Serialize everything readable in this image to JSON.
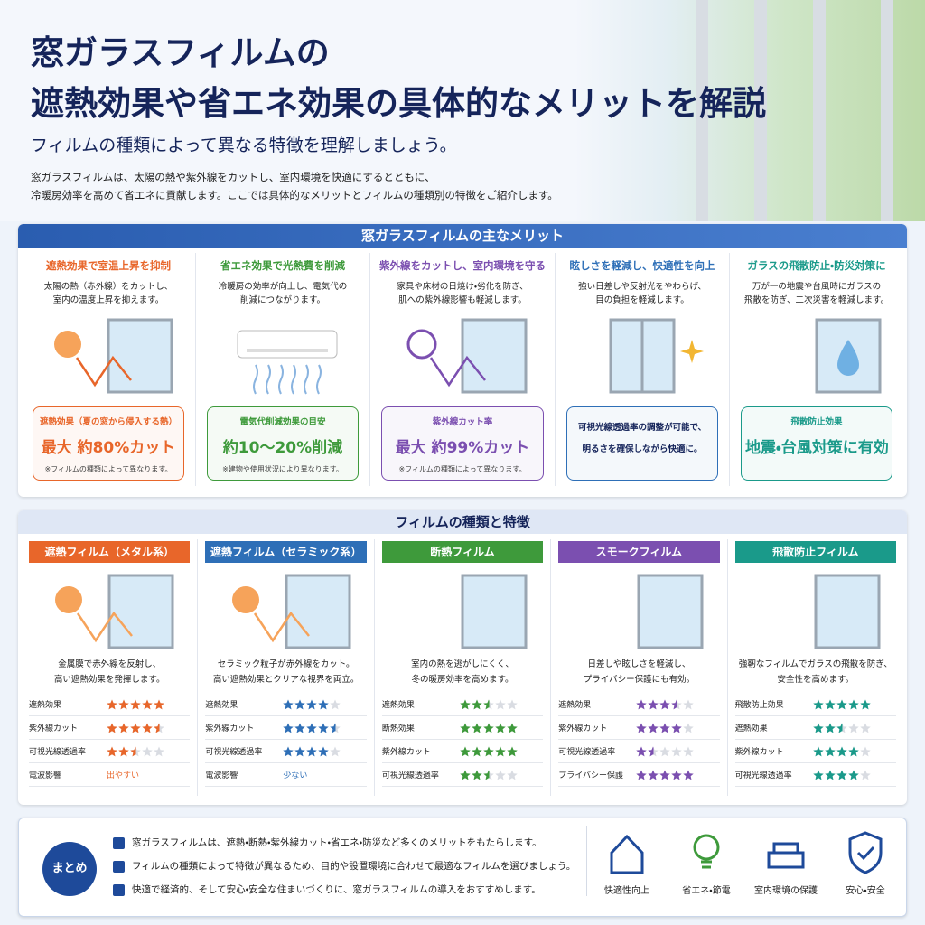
{
  "header": {
    "title_lines": [
      "窓ガラスフィルムの",
      "遮熱効果や省エネ効果の具体的なメリットを解説"
    ],
    "subtitle": "フィルムの種類によって異なる特徴を理解しましょう。",
    "intro": [
      "窓ガラスフィルムは、太陽の熱や紫外線をカットし、室内環境を快適にするとともに、",
      "冷暖房効率を高めて省エネに貢献します。ここでは具体的なメリットとフィルムの種類別の特徴をご紹介します。"
    ]
  },
  "merits": {
    "title": "窓ガラスフィルムの主なメリット",
    "cards": [
      {
        "heading": "遮熱効果で室温上昇を抑制",
        "description": [
          "太陽の熱（赤外線）をカットし、",
          "室内の温度上昇を抑えます。"
        ],
        "box": {
          "label": "遮熱効果（夏の窓から侵入する熱）",
          "value": "最大 約80%カット",
          "note": "※フィルムの種類によって異なります。"
        }
      },
      {
        "heading": "省エネ効果で光熱費を削減",
        "description": [
          "冷暖房の効率が向上し、電気代の",
          "削減につながります。"
        ],
        "box": {
          "label": "電気代削減効果の目安",
          "value": "約10〜20%削減",
          "note": "※建物や使用状況により異なります。"
        }
      },
      {
        "heading": "紫外線をカットし、室内環境を守る",
        "description": [
          "家具や床材の日焼け・劣化を防ぎ、",
          "肌への紫外線影響も軽減します。"
        ],
        "box": {
          "label": "紫外線カット率",
          "value": "最大 約99%カット",
          "note": "※フィルムの種類によって異なります。"
        }
      },
      {
        "heading": "眩しさを軽減し、快適性を向上",
        "description": [
          "強い日差しや反射光をやわらげ、",
          "目の負担を軽減します。"
        ],
        "box": {
          "text": [
            "可視光線透過率の調整が可能で、",
            "明るさを確保しながら快適に。"
          ]
        }
      },
      {
        "heading": "ガラスの飛散防止・防災対策に",
        "description": [
          "万が一の地震や台風時にガラスの",
          "飛散を防ぎ、二次災害を軽減します。"
        ],
        "box": {
          "label": "飛散防止効果",
          "value": "地震・台風対策に有効"
        }
      }
    ]
  },
  "films": {
    "title": "フィルムの種類と特徴",
    "cards": [
      {
        "name": "遮熱フィルム（メタル系）",
        "description": [
          "金属膜で赤外線を反射し、",
          "高い遮熱効果を発揮します。"
        ],
        "ratings": [
          {
            "label": "遮熱効果",
            "rating": 5
          },
          {
            "label": "紫外線カット",
            "rating": 4.5
          },
          {
            "label": "可視光線透過率",
            "rating": 2.5
          },
          {
            "label": "電波影響",
            "text": "出やすい"
          }
        ]
      },
      {
        "name": "遮熱フィルム（セラミック系）",
        "description": [
          "セラミック粒子が赤外線をカット。",
          "高い遮熱効果とクリアな視界を両立。"
        ],
        "ratings": [
          {
            "label": "遮熱効果",
            "rating": 4
          },
          {
            "label": "紫外線カット",
            "rating": 4.5
          },
          {
            "label": "可視光線透過率",
            "rating": 4
          },
          {
            "label": "電波影響",
            "text": "少ない"
          }
        ]
      },
      {
        "name": "断熱フィルム",
        "description": [
          "室内の熱を逃がしにくく、",
          "冬の暖房効率を高めます。"
        ],
        "ratings": [
          {
            "label": "遮熱効果",
            "rating": 2.5
          },
          {
            "label": "断熱効果",
            "rating": 5
          },
          {
            "label": "紫外線カット",
            "rating": 5
          },
          {
            "label": "可視光線透過率",
            "rating": 2.5
          }
        ]
      },
      {
        "name": "スモークフィルム",
        "description": [
          "日差しや眩しさを軽減し、",
          "プライバシー保護にも有効。"
        ],
        "ratings": [
          {
            "label": "遮熱効果",
            "rating": 3.5
          },
          {
            "label": "紫外線カット",
            "rating": 4
          },
          {
            "label": "可視光線透過率",
            "rating": 1.5
          },
          {
            "label": "プライバシー保護",
            "rating": 5
          }
        ]
      },
      {
        "name": "飛散防止フィルム",
        "description": [
          "強靭なフィルムでガラスの飛散を防ぎ、",
          "安全性を高めます。"
        ],
        "ratings": [
          {
            "label": "飛散防止効果",
            "rating": 5
          },
          {
            "label": "遮熱効果",
            "rating": 2.5
          },
          {
            "label": "紫外線カット",
            "rating": 4
          },
          {
            "label": "可視光線透過率",
            "rating": 4
          }
        ]
      }
    ]
  },
  "summary": {
    "badge": "まとめ",
    "points": [
      "窓ガラスフィルムは、遮熱・断熱・紫外線カット・省エネ・防災など多くのメリットをもたらします。",
      "フィルムの種類によって特徴が異なるため、目的や設置環境に合わせて最適なフィルムを選びましょう。",
      "快適で経済的、そして安心・安全な住まいづくりに、窓ガラスフィルムの導入をおすすめします。"
    ],
    "icons": [
      "快適性向上",
      "省エネ・節電",
      "室内環境の保護",
      "安心・安全"
    ]
  }
}
